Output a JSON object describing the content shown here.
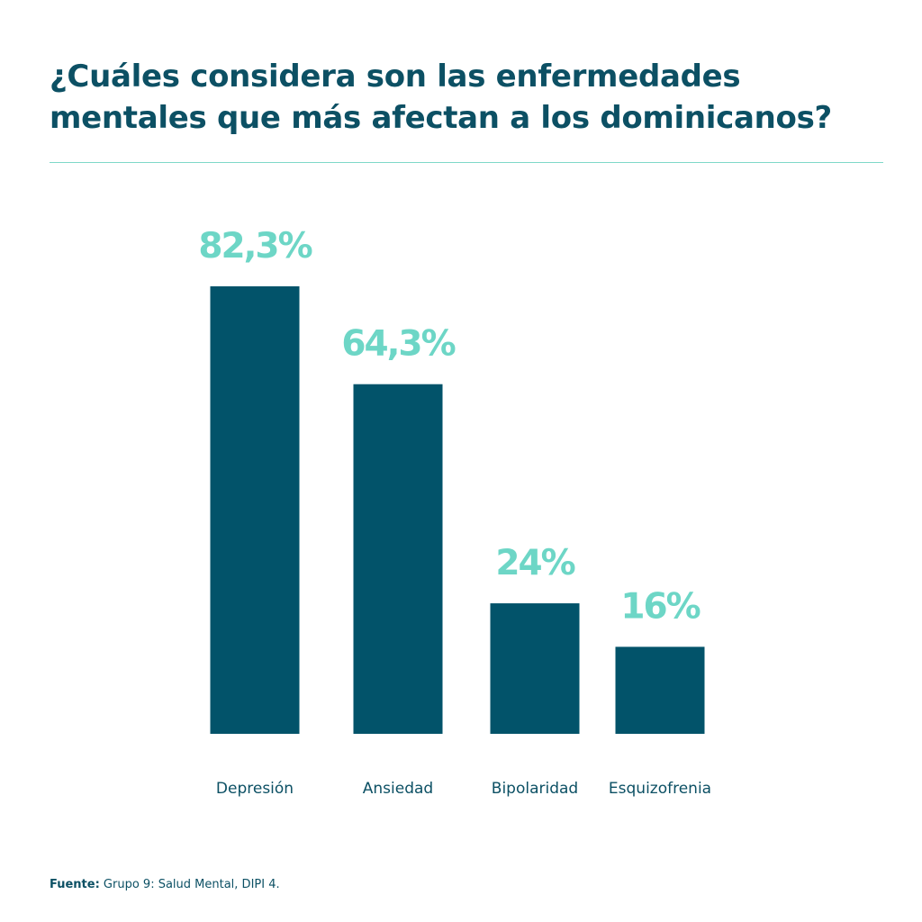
{
  "chart_data": {
    "type": "bar",
    "title": "¿Cuáles considera son las enfermedades mentales que más afectan a los dominicanos?",
    "categories": [
      "Depresión",
      "Ansiedad",
      "Bipolaridad",
      "Esquizofrenia"
    ],
    "values": [
      82.3,
      64.3,
      24,
      16
    ],
    "value_labels": [
      "82,3%",
      "64,3%",
      "24%",
      "16%"
    ],
    "xlabel": "",
    "ylabel": "",
    "ylim": [
      0,
      82.3
    ],
    "grid": false,
    "colors": {
      "bar": "#02536a",
      "value_label": "#6dd6c6",
      "text": "#0c5064",
      "divider": "#7fd8c9"
    }
  },
  "source": {
    "label": "Fuente:",
    "text": " Grupo 9: Salud Mental, DIPI 4."
  }
}
